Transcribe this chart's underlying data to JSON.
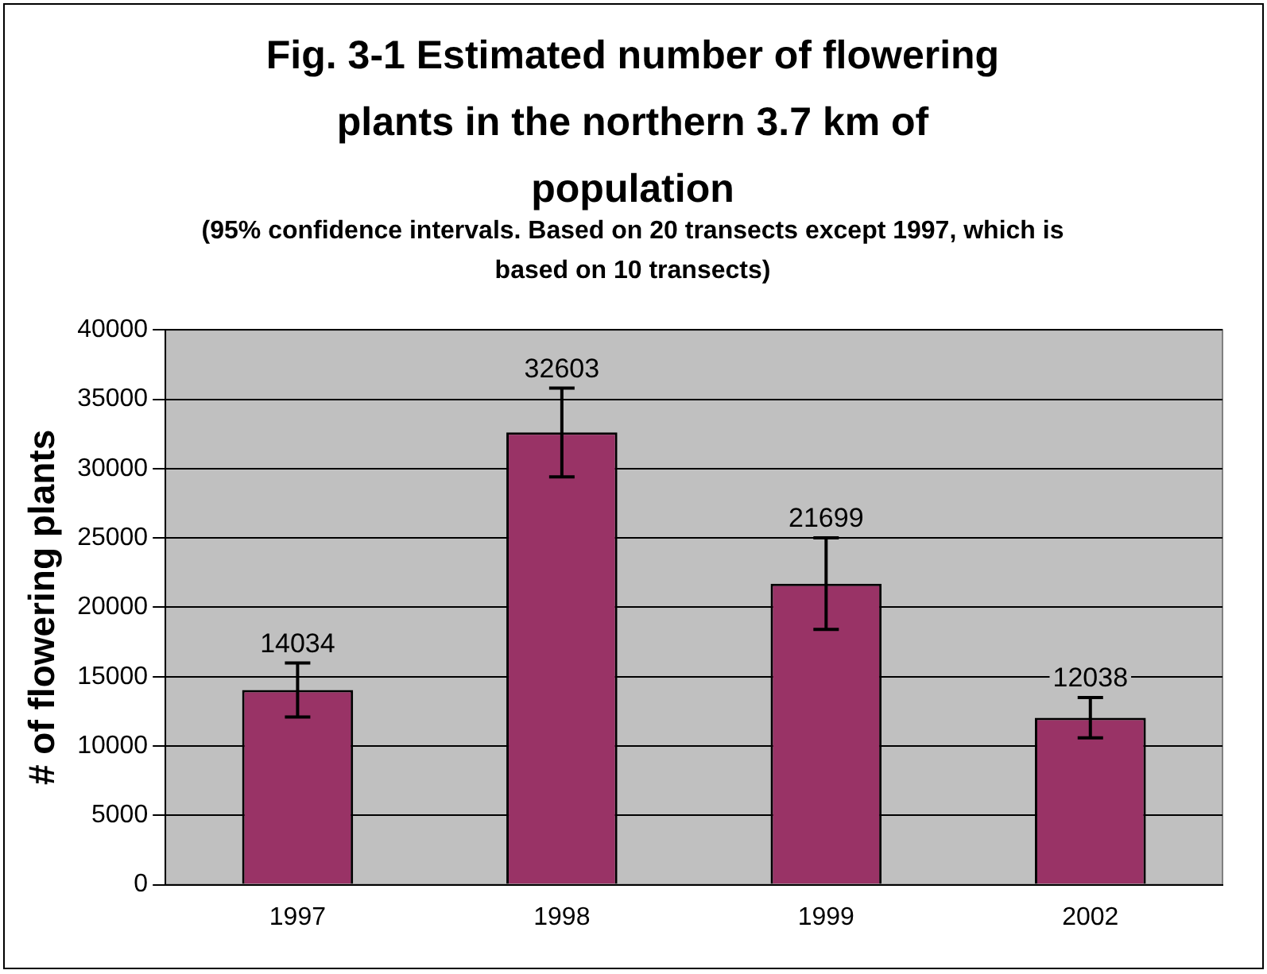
{
  "chart_data": {
    "type": "bar",
    "title": "Fig. 3-1 Estimated number of flowering plants in the northern 3.7 km of population",
    "subtitle": "(95% confidence intervals. Based on 20 transects except 1997, which is based on 10 transects)",
    "ylabel": "# of flowering plants",
    "categories": [
      "1997",
      "1998",
      "1999",
      "2002"
    ],
    "values": [
      14034,
      32603,
      21699,
      12038
    ],
    "errors": [
      1950,
      3200,
      3300,
      1450
    ],
    "color": "#993366",
    "data_labels": true,
    "ylim": [
      0,
      40000
    ],
    "yticks": [
      0,
      5000,
      10000,
      15000,
      20000,
      25000,
      30000,
      35000,
      40000
    ],
    "grid": "y",
    "legend": false
  }
}
